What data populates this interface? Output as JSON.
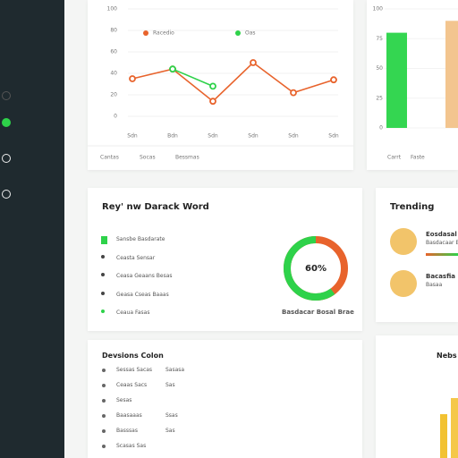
{
  "sidebar": {
    "items": [
      {
        "icon": "grey"
      },
      {
        "icon": "green"
      },
      {
        "icon": "white"
      },
      {
        "icon": "white"
      }
    ]
  },
  "line_chart": {
    "type": "line",
    "legend": [
      "Racedio",
      "Oas"
    ],
    "categories": [
      "Sdn",
      "Bdn",
      "Sdn",
      "Sdn",
      "Sdn",
      "Sdn"
    ],
    "series": [
      {
        "name": "Racedio",
        "color": "#e8632c",
        "values": [
          35,
          44,
          14,
          50,
          22,
          34
        ]
      },
      {
        "name": "Oas",
        "color": "#2ed24a",
        "values": [
          null,
          44,
          28,
          null,
          null,
          null
        ]
      }
    ],
    "ylim": [
      0,
      100
    ],
    "yticks": [
      0,
      20,
      40,
      60,
      80,
      100
    ],
    "tabs": [
      "Cantas",
      "Socas",
      "Bessmas"
    ]
  },
  "bar_chart": {
    "type": "bar",
    "categories": [
      "Carrt",
      "Faste"
    ],
    "values": [
      80,
      90
    ],
    "colors": [
      "#34d651",
      "#f3c58f"
    ],
    "ylim": [
      0,
      100
    ],
    "yticks": [
      0,
      25,
      50,
      75,
      100
    ]
  },
  "report": {
    "title": "Rey' nw Darack Word",
    "items": [
      "Sansbe Basdarate",
      "Ceasta Sensar",
      "Ceasa Geaans Besas",
      "Geasa Cseas Baaas",
      "Ceaua Fasas"
    ],
    "donut": {
      "value": 60,
      "label": "60%",
      "caption": "Basdacar Bosal Brae",
      "colors": [
        "#2ed24a",
        "#e8632c"
      ]
    }
  },
  "trending": {
    "title": "Trending",
    "items": [
      {
        "title": "Eosdasal",
        "sub": "Basdacaar Basas"
      },
      {
        "title": "Bacasfia Basad",
        "sub": "Basaa"
      }
    ]
  },
  "list": {
    "title": "Devsions Colon",
    "rows": [
      [
        "Sessas Sacas",
        "Sasasa"
      ],
      [
        "Ceaas Sacs",
        "Sas"
      ],
      [
        "Sesas",
        ""
      ],
      [
        "Baasaaas",
        "Ssas"
      ],
      [
        "Basssas",
        "Sas"
      ],
      [
        "Scasas Sas",
        ""
      ]
    ]
  },
  "mini_chart": {
    "title": "Nebs"
  }
}
